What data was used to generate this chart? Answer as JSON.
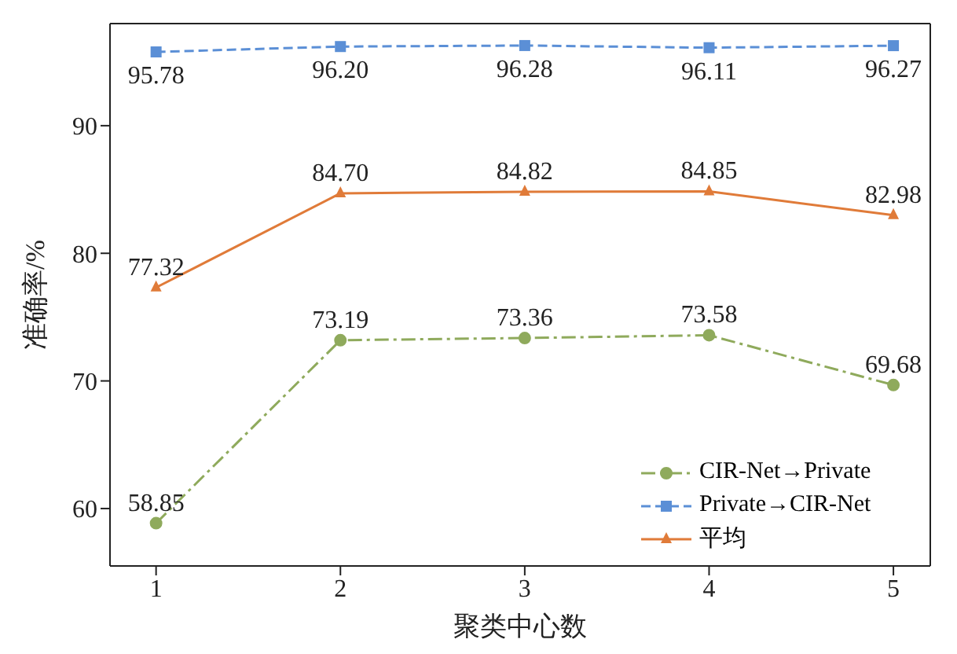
{
  "chart_data": {
    "type": "line",
    "xlabel": "聚类中心数",
    "ylabel": "准确率/%",
    "x": [
      1,
      2,
      3,
      4,
      5
    ],
    "xlim": [
      0.75,
      5.2
    ],
    "xticks": [
      1,
      2,
      3,
      4,
      5
    ],
    "ylim": [
      55.5,
      98
    ],
    "yticks": [
      60,
      70,
      80,
      90
    ],
    "grid": false,
    "legend": "bottom right",
    "series": [
      {
        "name": "CIR-Net→Private",
        "color": "#8faa5c",
        "values": [
          58.85,
          73.19,
          73.36,
          73.58,
          69.68
        ],
        "value_labels": [
          "58.85",
          "73.19",
          "73.36",
          "73.58",
          "69.68"
        ],
        "marker": "circle",
        "line_style": "dashdot"
      },
      {
        "name": "Private→CIR-Net",
        "color": "#5b8fd6",
        "values": [
          95.78,
          96.2,
          96.28,
          96.11,
          96.27
        ],
        "value_labels": [
          "95.78",
          "96.20",
          "96.28",
          "96.11",
          "96.27"
        ],
        "marker": "square",
        "line_style": "dashed"
      },
      {
        "name": "平均",
        "color": "#e07b39",
        "values": [
          77.32,
          84.7,
          84.82,
          84.85,
          82.98
        ],
        "value_labels": [
          "77.32",
          "84.70",
          "84.82",
          "84.85",
          "82.98"
        ],
        "marker": "triangle",
        "line_style": "solid"
      }
    ]
  }
}
